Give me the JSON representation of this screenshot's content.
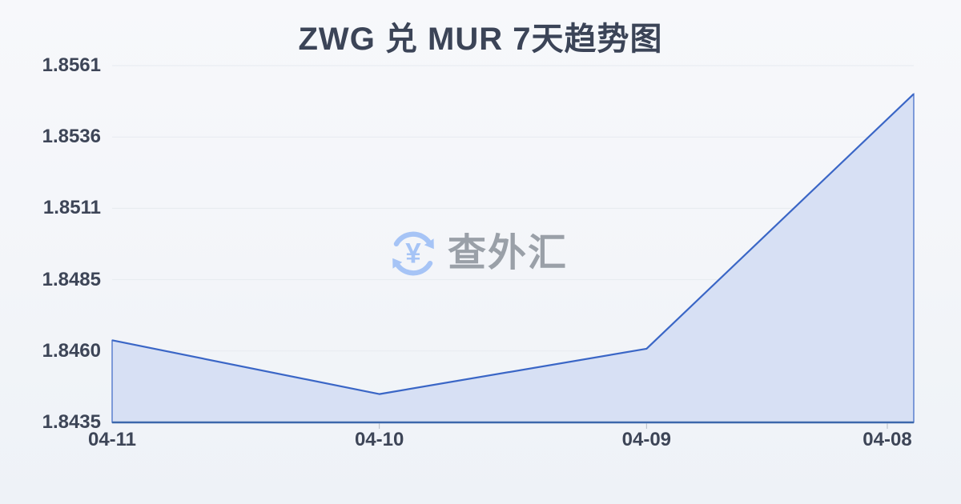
{
  "chart_data": {
    "type": "area",
    "title": "ZWG 兑 MUR 7天趋势图",
    "categories": [
      "04-11",
      "04-10",
      "04-09",
      "04-08"
    ],
    "values": [
      1.8464,
      1.8445,
      1.8461,
      1.8551
    ],
    "y_ticks": [
      "1.8561",
      "1.8536",
      "1.8511",
      "1.8485",
      "1.8460",
      "1.8435"
    ],
    "ylim": [
      1.8435,
      1.8561
    ],
    "xlabel": "",
    "ylabel": "",
    "grid": true,
    "legend": "none",
    "colors": {
      "line": "#3a66c6",
      "fill": "#d7e0f4",
      "axis_line": "#3c67ab",
      "grid_line": "#e7eaef",
      "tick_mark": "#b6bcc6",
      "tick_text": "#3d4557",
      "title_text": "#3b4457"
    }
  },
  "watermark": {
    "text": "查外汇",
    "icon": "currency-exchange-icon",
    "icon_symbol": "¥",
    "icon_color": "#a6c4f6",
    "text_color": "#9aa0a8"
  }
}
